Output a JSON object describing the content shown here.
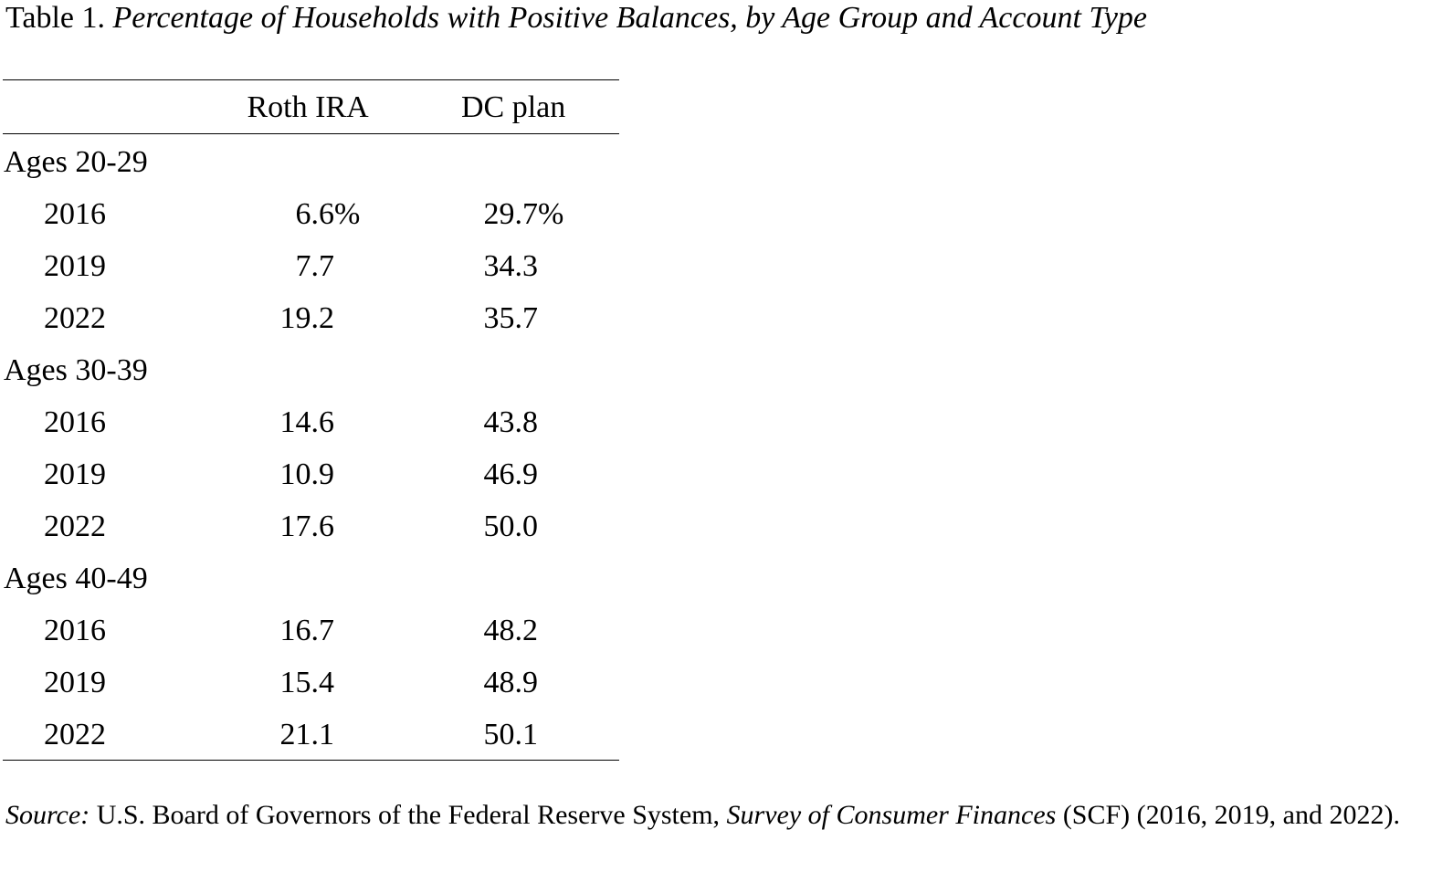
{
  "title": {
    "label": "Table 1.",
    "text": "Percentage of Households with Positive Balances, by Age Group and Account Type"
  },
  "table": {
    "columns": [
      "Roth IRA",
      "DC plan"
    ],
    "groups": [
      {
        "label": "Ages 20-29",
        "rows": [
          {
            "year": "2016",
            "values": [
              "6.6%",
              "29.7%"
            ]
          },
          {
            "year": "2019",
            "values": [
              "7.7",
              "34.3"
            ]
          },
          {
            "year": "2022",
            "values": [
              "19.2",
              "35.7"
            ]
          }
        ]
      },
      {
        "label": "Ages 30-39",
        "rows": [
          {
            "year": "2016",
            "values": [
              "14.6",
              "43.8"
            ]
          },
          {
            "year": "2019",
            "values": [
              "10.9",
              "46.9"
            ]
          },
          {
            "year": "2022",
            "values": [
              "17.6",
              "50.0"
            ]
          }
        ]
      },
      {
        "label": "Ages 40-49",
        "rows": [
          {
            "year": "2016",
            "values": [
              "16.7",
              "48.2"
            ]
          },
          {
            "year": "2019",
            "values": [
              "15.4",
              "48.9"
            ]
          },
          {
            "year": "2022",
            "values": [
              "21.1",
              "50.1"
            ]
          }
        ]
      }
    ]
  },
  "source": {
    "label": "Source:",
    "text": "U.S. Board of Governors of the Federal Reserve System,",
    "publication": "Survey of Consumer Finances",
    "note": "(SCF) (2016, 2019, and 2022)."
  }
}
